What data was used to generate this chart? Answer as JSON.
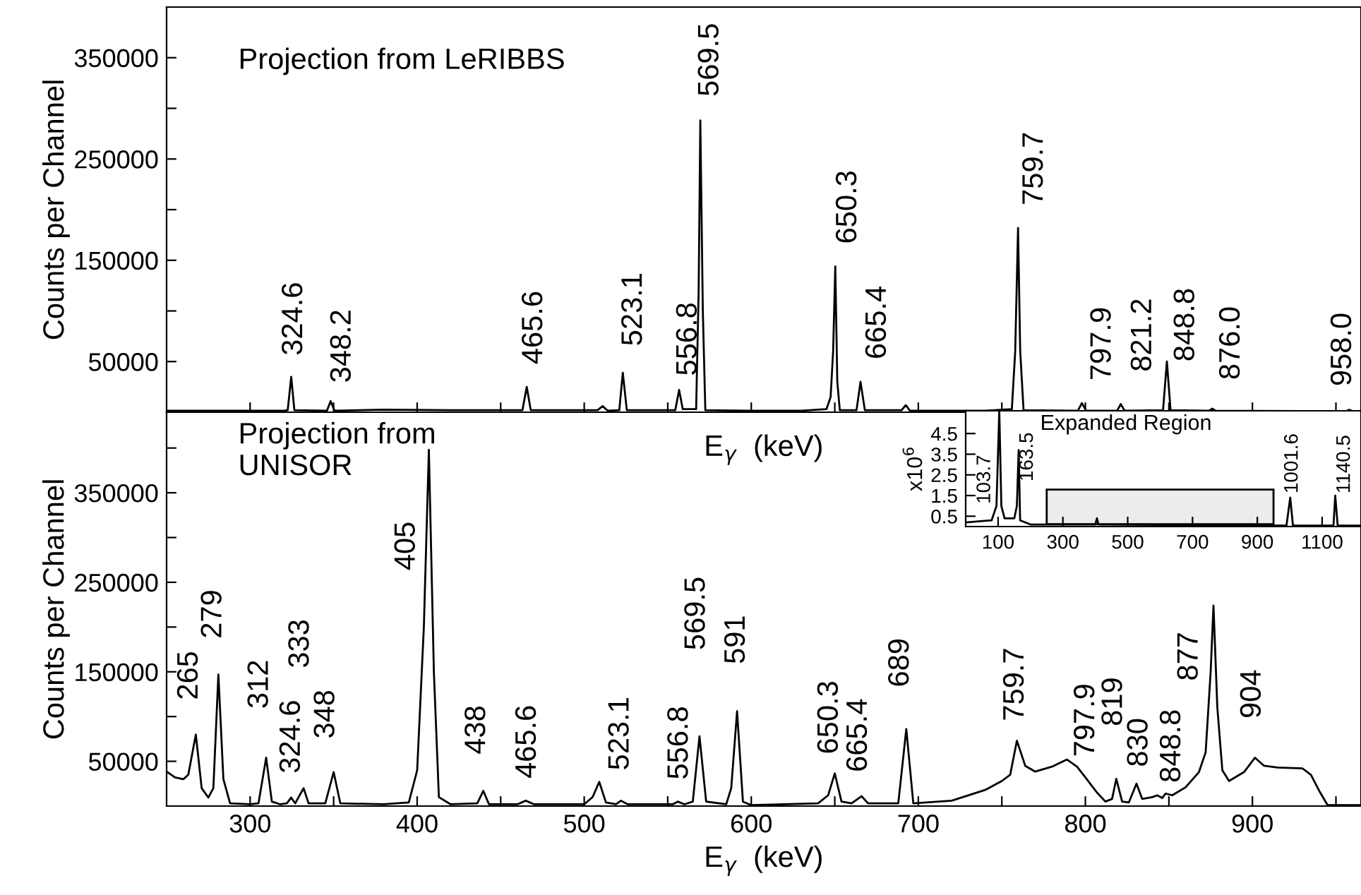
{
  "chart_data": [
    {
      "type": "line",
      "title": "Projection from LeRIBBS",
      "xlabel": "E$_{γ}$  (keV)",
      "ylabel": "Counts per Channel",
      "x": [
        250,
        300,
        320,
        322.5,
        324.6,
        326.5,
        346,
        348.2,
        350.5,
        380,
        420,
        463,
        465.6,
        468,
        508,
        511,
        514,
        521,
        523.1,
        525.5,
        554.5,
        556.8,
        559,
        567,
        568.5,
        569.5,
        571,
        572.5,
        600,
        630,
        645,
        647.5,
        649,
        650.3,
        651.5,
        653,
        663,
        665.4,
        668,
        690,
        692.5,
        695,
        740,
        756,
        758,
        759.7,
        761,
        763,
        795.5,
        797.9,
        800.5,
        819,
        821.2,
        823.5,
        846.5,
        848.8,
        851,
        874,
        876,
        878,
        956,
        958,
        960,
        965
      ],
      "series": [
        {
          "color": "#000000",
          "values": [
            1500,
            1500,
            1500,
            2000,
            35000,
            2000,
            1500,
            11000,
            1500,
            2500,
            2000,
            2000,
            25000,
            2000,
            2000,
            6000,
            1500,
            2000,
            39000,
            2000,
            2000,
            22000,
            3000,
            3000,
            120000,
            288000,
            100000,
            2000,
            1500,
            1500,
            3000,
            15000,
            60000,
            144000,
            30000,
            2000,
            2000,
            30000,
            2000,
            2000,
            7000,
            1500,
            1500,
            3000,
            60000,
            182000,
            60000,
            2000,
            1500,
            9000,
            1500,
            1500,
            8000,
            1500,
            2000,
            50000,
            2000,
            1500,
            3500,
            1500,
            1000,
            2500,
            1000,
            1000
          ]
        }
      ],
      "xlim": [
        250,
        965
      ],
      "ylim": [
        0,
        400000
      ],
      "xticks": [
        {
          "value": 300,
          "label": null
        },
        {
          "value": 350,
          "label": null
        },
        {
          "value": 400,
          "label": null
        },
        {
          "value": 450,
          "label": null
        },
        {
          "value": 500,
          "label": null
        },
        {
          "value": 550,
          "label": null
        },
        {
          "value": 600,
          "label": null
        },
        {
          "value": 650,
          "label": null
        },
        {
          "value": 700,
          "label": null
        },
        {
          "value": 750,
          "label": null
        },
        {
          "value": 800,
          "label": null
        },
        {
          "value": 850,
          "label": null
        },
        {
          "value": 900,
          "label": null
        },
        {
          "value": 950,
          "label": null
        }
      ],
      "yticks": [
        50000,
        {
          "value": 100000,
          "label": null
        },
        150000,
        {
          "value": 200000,
          "label": null
        },
        250000,
        {
          "value": 300000,
          "label": null
        },
        350000
      ],
      "tick_labels": "y",
      "annotations": [
        {
          "text": "324.6",
          "x": 324.6,
          "y": 35000
        },
        {
          "text": "348.2",
          "x": 348.2,
          "y": 11000
        },
        {
          "text": "465.6",
          "x": 465.6,
          "y": 25000
        },
        {
          "text": "523.1",
          "x": 523.1,
          "y": 39000
        },
        {
          "text": "556.8",
          "x": 556.8,
          "y": 22000
        },
        {
          "text": "569.5",
          "x": 569.5,
          "y": 288000
        },
        {
          "text": "650.3",
          "x": 650.3,
          "y": 144000
        },
        {
          "text": "665.4",
          "x": 665.4,
          "y": 30000
        },
        {
          "text": "759.7",
          "x": 759.7,
          "y": 182000
        },
        {
          "text": "797.9",
          "x": 797.9,
          "y": 9000
        },
        {
          "text": "821.2",
          "x": 821.2,
          "y": 8000
        },
        {
          "text": "848.8",
          "x": 848.8,
          "y": 50000
        },
        {
          "text": "876.0",
          "x": 876,
          "y": 3500
        },
        {
          "text": "958.0",
          "x": 958,
          "y": 2500
        }
      ]
    },
    {
      "type": "line",
      "title": "Projection from\nUNISOR",
      "xlabel": "E$_{γ}$  (keV)",
      "ylabel": "Counts per Channel",
      "x": [
        250,
        255,
        260,
        263,
        267.5,
        271,
        275,
        278,
        281,
        284,
        288,
        300,
        305,
        309.6,
        313,
        318,
        322,
        324.6,
        327,
        332,
        335,
        345,
        350,
        354,
        380,
        395,
        400,
        404,
        407,
        410,
        413,
        420,
        436,
        439.6,
        443,
        460,
        465,
        470,
        500,
        505,
        509,
        513,
        519,
        522,
        526,
        553,
        556,
        560,
        565,
        569,
        573,
        585,
        588,
        591.5,
        595,
        600,
        640,
        646,
        650,
        654,
        660,
        666,
        670,
        688,
        692.8,
        697,
        720,
        740,
        750,
        755,
        759,
        764,
        770,
        780,
        789,
        795,
        800,
        807,
        812,
        816,
        818.5,
        822,
        826,
        830.6,
        834,
        840,
        843,
        846,
        848,
        852,
        860,
        868,
        872,
        875,
        876.7,
        879,
        882,
        886,
        895,
        901.5,
        907,
        915,
        930,
        935,
        940,
        945,
        965
      ],
      "series": [
        {
          "color": "#000000",
          "values": [
            38500,
            32000,
            30000,
            35000,
            80000,
            20000,
            9500,
            20000,
            147000,
            30000,
            3000,
            2000,
            3000,
            54000,
            5000,
            2000,
            3000,
            9500,
            3000,
            20000,
            3000,
            3000,
            38000,
            3000,
            2000,
            4000,
            40000,
            200000,
            398000,
            150000,
            10000,
            2000,
            3000,
            17000,
            2000,
            2000,
            6000,
            2000,
            2000,
            10000,
            27000,
            4000,
            2000,
            6000,
            2000,
            2000,
            5000,
            2000,
            5000,
            78000,
            5000,
            2000,
            20000,
            106000,
            5000,
            1000,
            3000,
            12000,
            36500,
            5000,
            3000,
            11000,
            3000,
            3000,
            86000,
            3000,
            6000,
            18000,
            28000,
            35000,
            73000,
            45000,
            38500,
            44000,
            52000,
            44000,
            32000,
            15000,
            5000,
            8000,
            30500,
            5000,
            4000,
            25000,
            8000,
            10000,
            12000,
            9000,
            14000,
            12000,
            21000,
            38000,
            60000,
            150000,
            224000,
            110000,
            40000,
            28000,
            38000,
            54000,
            45000,
            43000,
            42000,
            35000,
            17000,
            1000,
            1000
          ]
        }
      ],
      "xlim": [
        250,
        965
      ],
      "ylim": [
        0,
        440000
      ],
      "xticks": [
        300,
        {
          "value": 350,
          "label": null
        },
        400,
        {
          "value": 450,
          "label": null
        },
        500,
        {
          "value": 550,
          "label": null
        },
        600,
        {
          "value": 650,
          "label": null
        },
        700,
        {
          "value": 750,
          "label": null
        },
        800,
        {
          "value": 850,
          "label": null
        },
        900,
        {
          "value": 950,
          "label": null
        }
      ],
      "yticks": [
        50000,
        {
          "value": 100000,
          "label": null
        },
        150000,
        {
          "value": 200000,
          "label": null
        },
        250000,
        {
          "value": 300000,
          "label": null
        },
        350000,
        {
          "value": 400000,
          "label": null
        }
      ],
      "annotations": [
        {
          "text": "265",
          "x": 267.5,
          "y": 80000
        },
        {
          "text": "279",
          "x": 281,
          "y": 147000
        },
        {
          "text": "312",
          "x": 309.6,
          "y": 54000
        },
        {
          "text": "324.6",
          "x": 324.6,
          "y": 9500
        },
        "333",
        {
          "text": "348",
          "x": 350,
          "y": 38000
        },
        "405",
        {
          "text": "438",
          "x": 439.6,
          "y": 17000
        },
        {
          "text": "465.6",
          "x": 465,
          "y": 6000
        },
        {
          "text": "523.1",
          "x": 522,
          "y": 6000
        },
        {
          "text": "556.8",
          "x": 556,
          "y": 5000
        },
        {
          "text": "569.5",
          "x": 569,
          "y": 78000
        },
        {
          "text": "591",
          "x": 591.5,
          "y": 106000
        },
        {
          "text": "650.3",
          "x": 650,
          "y": 36500
        },
        {
          "text": "665.4",
          "x": 666,
          "y": 11000
        },
        {
          "text": "689",
          "x": 692.8,
          "y": 86000
        },
        {
          "text": "759.7",
          "x": 759,
          "y": 73000
        },
        {
          "text": "797.9",
          "x": 789,
          "y": 52000
        },
        {
          "text": "819",
          "x": 818.5,
          "y": 30500
        },
        {
          "text": "830",
          "x": 830.6,
          "y": 25000
        },
        {
          "text": "848.8",
          "x": 848,
          "y": 14000
        },
        {
          "text": "877",
          "x": 876.7,
          "y": 224000
        },
        {
          "text": "904",
          "x": 901.5,
          "y": 54000
        }
      ]
    },
    {
      "type": "line",
      "ylabel": "x10$^{6}$",
      "x": [
        0,
        80,
        95,
        103.7,
        110,
        120,
        150,
        158,
        163.5,
        168,
        200,
        400,
        405,
        410,
        990,
        1001.6,
        1010,
        1135,
        1140.5,
        1148,
        1220
      ],
      "series": [
        {
          "color": "#000000",
          "values": [
            0.2,
            0.3,
            1.0,
            5.6,
            1.0,
            0.4,
            0.4,
            1.0,
            3.7,
            0.3,
            0.1,
            0.1,
            0.4,
            0.1,
            0.05,
            1.4,
            0.05,
            0.05,
            1.5,
            0.05,
            0.05
          ]
        }
      ],
      "xlim": [
        0,
        1220
      ],
      "ylim": [
        0,
        5.6
      ],
      "xticks": [
        100,
        300,
        500,
        700,
        900,
        1100
      ],
      "yticks": [
        0.5,
        1.5,
        2.5,
        3.5,
        4.5
      ],
      "bands": [
        {
          "axis": "x",
          "from": 250,
          "to": 950,
          "label": "Expanded Region",
          "color": "#000000"
        }
      ],
      "annotations": [
        "103.7",
        "163.5",
        "1001.6",
        "1140.5"
      ]
    }
  ]
}
